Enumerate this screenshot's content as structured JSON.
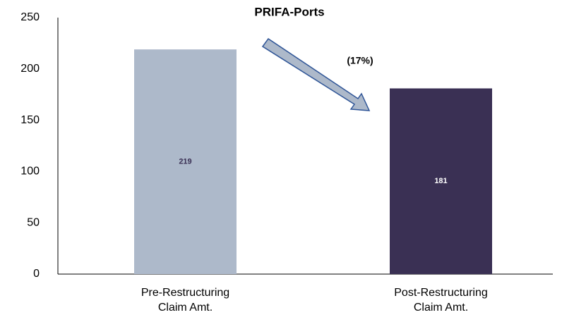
{
  "chart_data": {
    "type": "bar",
    "title": "PRIFA-Ports",
    "categories": [
      [
        "Pre-Restructuring",
        "Claim Amt."
      ],
      [
        "Post-Restructuring",
        "Claim Amt."
      ]
    ],
    "values": [
      219,
      181
    ],
    "colors": [
      "#adb9ca",
      "#3a3054"
    ],
    "label_colors": [
      "#3a3054",
      "#ffffff"
    ],
    "annotation": "(17%)",
    "ylim": [
      0,
      250
    ],
    "yticks": [
      0,
      50,
      100,
      150,
      200,
      250
    ],
    "grid": false
  }
}
